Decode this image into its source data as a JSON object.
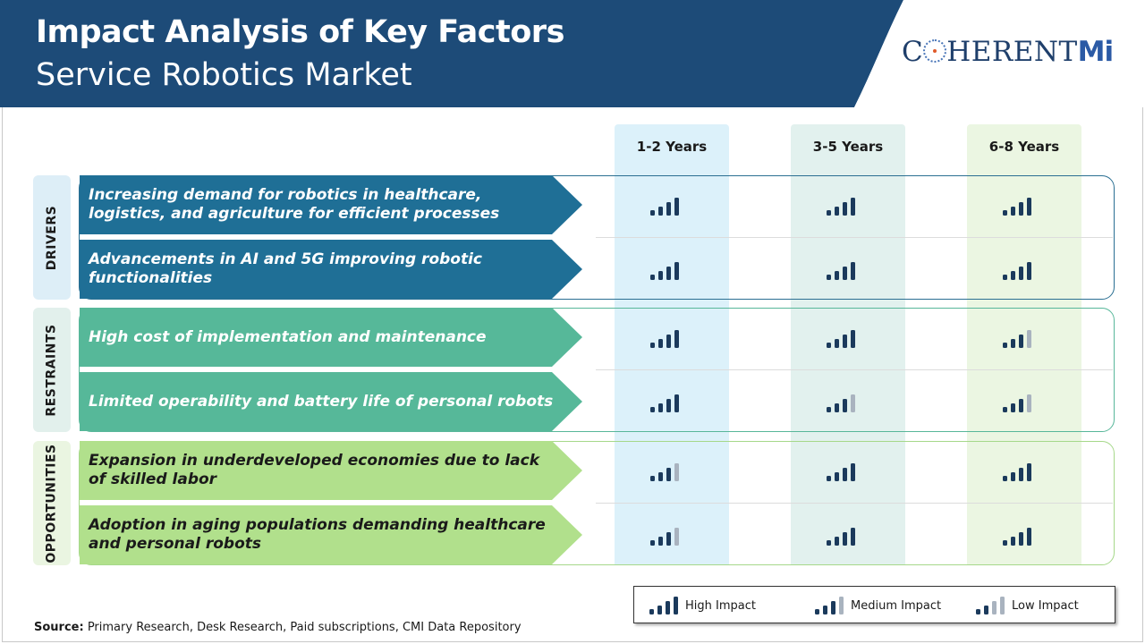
{
  "header": {
    "title_line1": "Impact Analysis of Key Factors",
    "title_line2": "Service Robotics Market",
    "logo_text": "C",
    "logo_text_rest": "HERENT",
    "logo_mi": "Mi",
    "colors": {
      "banner": "#1d4b78",
      "logo_bg": "#ffffff"
    }
  },
  "columns": [
    {
      "label": "1-2 Years",
      "color": "#dcf1fa"
    },
    {
      "label": "3-5 Years",
      "color": "#e2f1ee"
    },
    {
      "label": "6-8 Years",
      "color": "#ebf6e2"
    }
  ],
  "groups": [
    {
      "label": "DRIVERS",
      "tab_color": "#ddeef7",
      "border_color": "#2a6f92",
      "factor_color": "#1f6f96"
    },
    {
      "label": "RESTRAINTS",
      "tab_color": "#e2f0ec",
      "border_color": "#58b79a",
      "factor_color": "#56b899"
    },
    {
      "label": "OPPORTUNITIES",
      "tab_color": "#eaf5e1",
      "border_color": "#a6d88a",
      "factor_color": "#b1e08c"
    }
  ],
  "chart_data": {
    "type": "table",
    "title": "Impact Analysis of Key Factors",
    "subtitle": "Service Robotics Market",
    "levels": {
      "high": 4,
      "medium": 3,
      "low": 2
    },
    "columns": [
      "1-2 Years",
      "3-5 Years",
      "6-8 Years"
    ],
    "rows": [
      {
        "group": "DRIVERS",
        "factor": "Increasing demand for robotics in healthcare, logistics, and agriculture for efficient processes",
        "impact": [
          "high",
          "high",
          "high"
        ]
      },
      {
        "group": "DRIVERS",
        "factor": "Advancements in AI and 5G improving robotic functionalities",
        "impact": [
          "high",
          "high",
          "high"
        ]
      },
      {
        "group": "RESTRAINTS",
        "factor": "High cost of implementation and maintenance",
        "impact": [
          "high",
          "high",
          "medium"
        ]
      },
      {
        "group": "RESTRAINTS",
        "factor": "Limited operability and battery life of personal robots",
        "impact": [
          "high",
          "medium",
          "medium"
        ]
      },
      {
        "group": "OPPORTUNITIES",
        "factor": "Expansion in underdeveloped economies due to lack of skilled labor",
        "impact": [
          "medium",
          "high",
          "high"
        ]
      },
      {
        "group": "OPPORTUNITIES",
        "factor": "Adoption in aging populations demanding healthcare and personal robots",
        "impact": [
          "medium",
          "high",
          "high"
        ]
      }
    ],
    "legend": [
      {
        "label": "High Impact",
        "level": "high"
      },
      {
        "label": "Medium Impact",
        "level": "medium"
      },
      {
        "label": "Low Impact",
        "level": "low"
      }
    ],
    "bar_colors": {
      "dark": "#1b3a5c",
      "light": "#a9b3bf"
    }
  },
  "source": {
    "label": "Source:",
    "text": " Primary Research, Desk Research, Paid subscriptions, CMI Data Repository"
  }
}
